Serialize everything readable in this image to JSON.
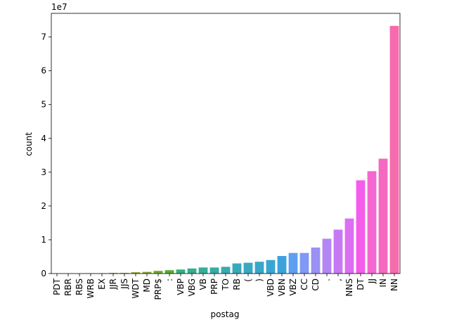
{
  "chart_data": {
    "type": "bar",
    "offset_label": "1e7",
    "xlabel": "postag",
    "ylabel": "count",
    "categories": [
      "PDT",
      "RBR",
      "RBS",
      "WRB",
      "EX",
      "JJR",
      "JJS",
      "WDT",
      "MD",
      "PRP$",
      ":",
      "VBP",
      "VBG",
      "VB",
      "PRP",
      "TO",
      "RB",
      "(",
      ")",
      "VBD",
      "VBN",
      "VBZ",
      "CC",
      "CD",
      ".",
      ",",
      "NNS",
      "DT",
      "JJ",
      "IN",
      "NN"
    ],
    "values": [
      0.002,
      0.005,
      0.005,
      0.01,
      0.01,
      0.02,
      0.02,
      0.04,
      0.05,
      0.08,
      0.1,
      0.12,
      0.15,
      0.18,
      0.18,
      0.2,
      0.3,
      0.32,
      0.35,
      0.4,
      0.52,
      0.61,
      0.61,
      0.77,
      1.03,
      1.3,
      1.63,
      2.76,
      3.03,
      3.4,
      7.33
    ],
    "colors": [
      "#f77189",
      "#f7754f",
      "#e68332",
      "#d58c32",
      "#c69432",
      "#b59a32",
      "#a59c32",
      "#97a431",
      "#86a831",
      "#6fac31",
      "#4fb031",
      "#33b07a",
      "#34ae8d",
      "#35ad9b",
      "#36aca6",
      "#36abb0",
      "#37aab9",
      "#38a9c1",
      "#38a7c9",
      "#39a6d2",
      "#3ba3dc",
      "#5d9ff3",
      "#7f99f4",
      "#9a91f4",
      "#b287f4",
      "#c779f4",
      "#dc6ef4",
      "#f45deb",
      "#f566d0",
      "#f569c0",
      "#f66bad"
    ],
    "ylim": [
      0,
      7.7
    ],
    "yticks": [
      0,
      1,
      2,
      3,
      4,
      5,
      6,
      7
    ],
    "grid": false
  }
}
